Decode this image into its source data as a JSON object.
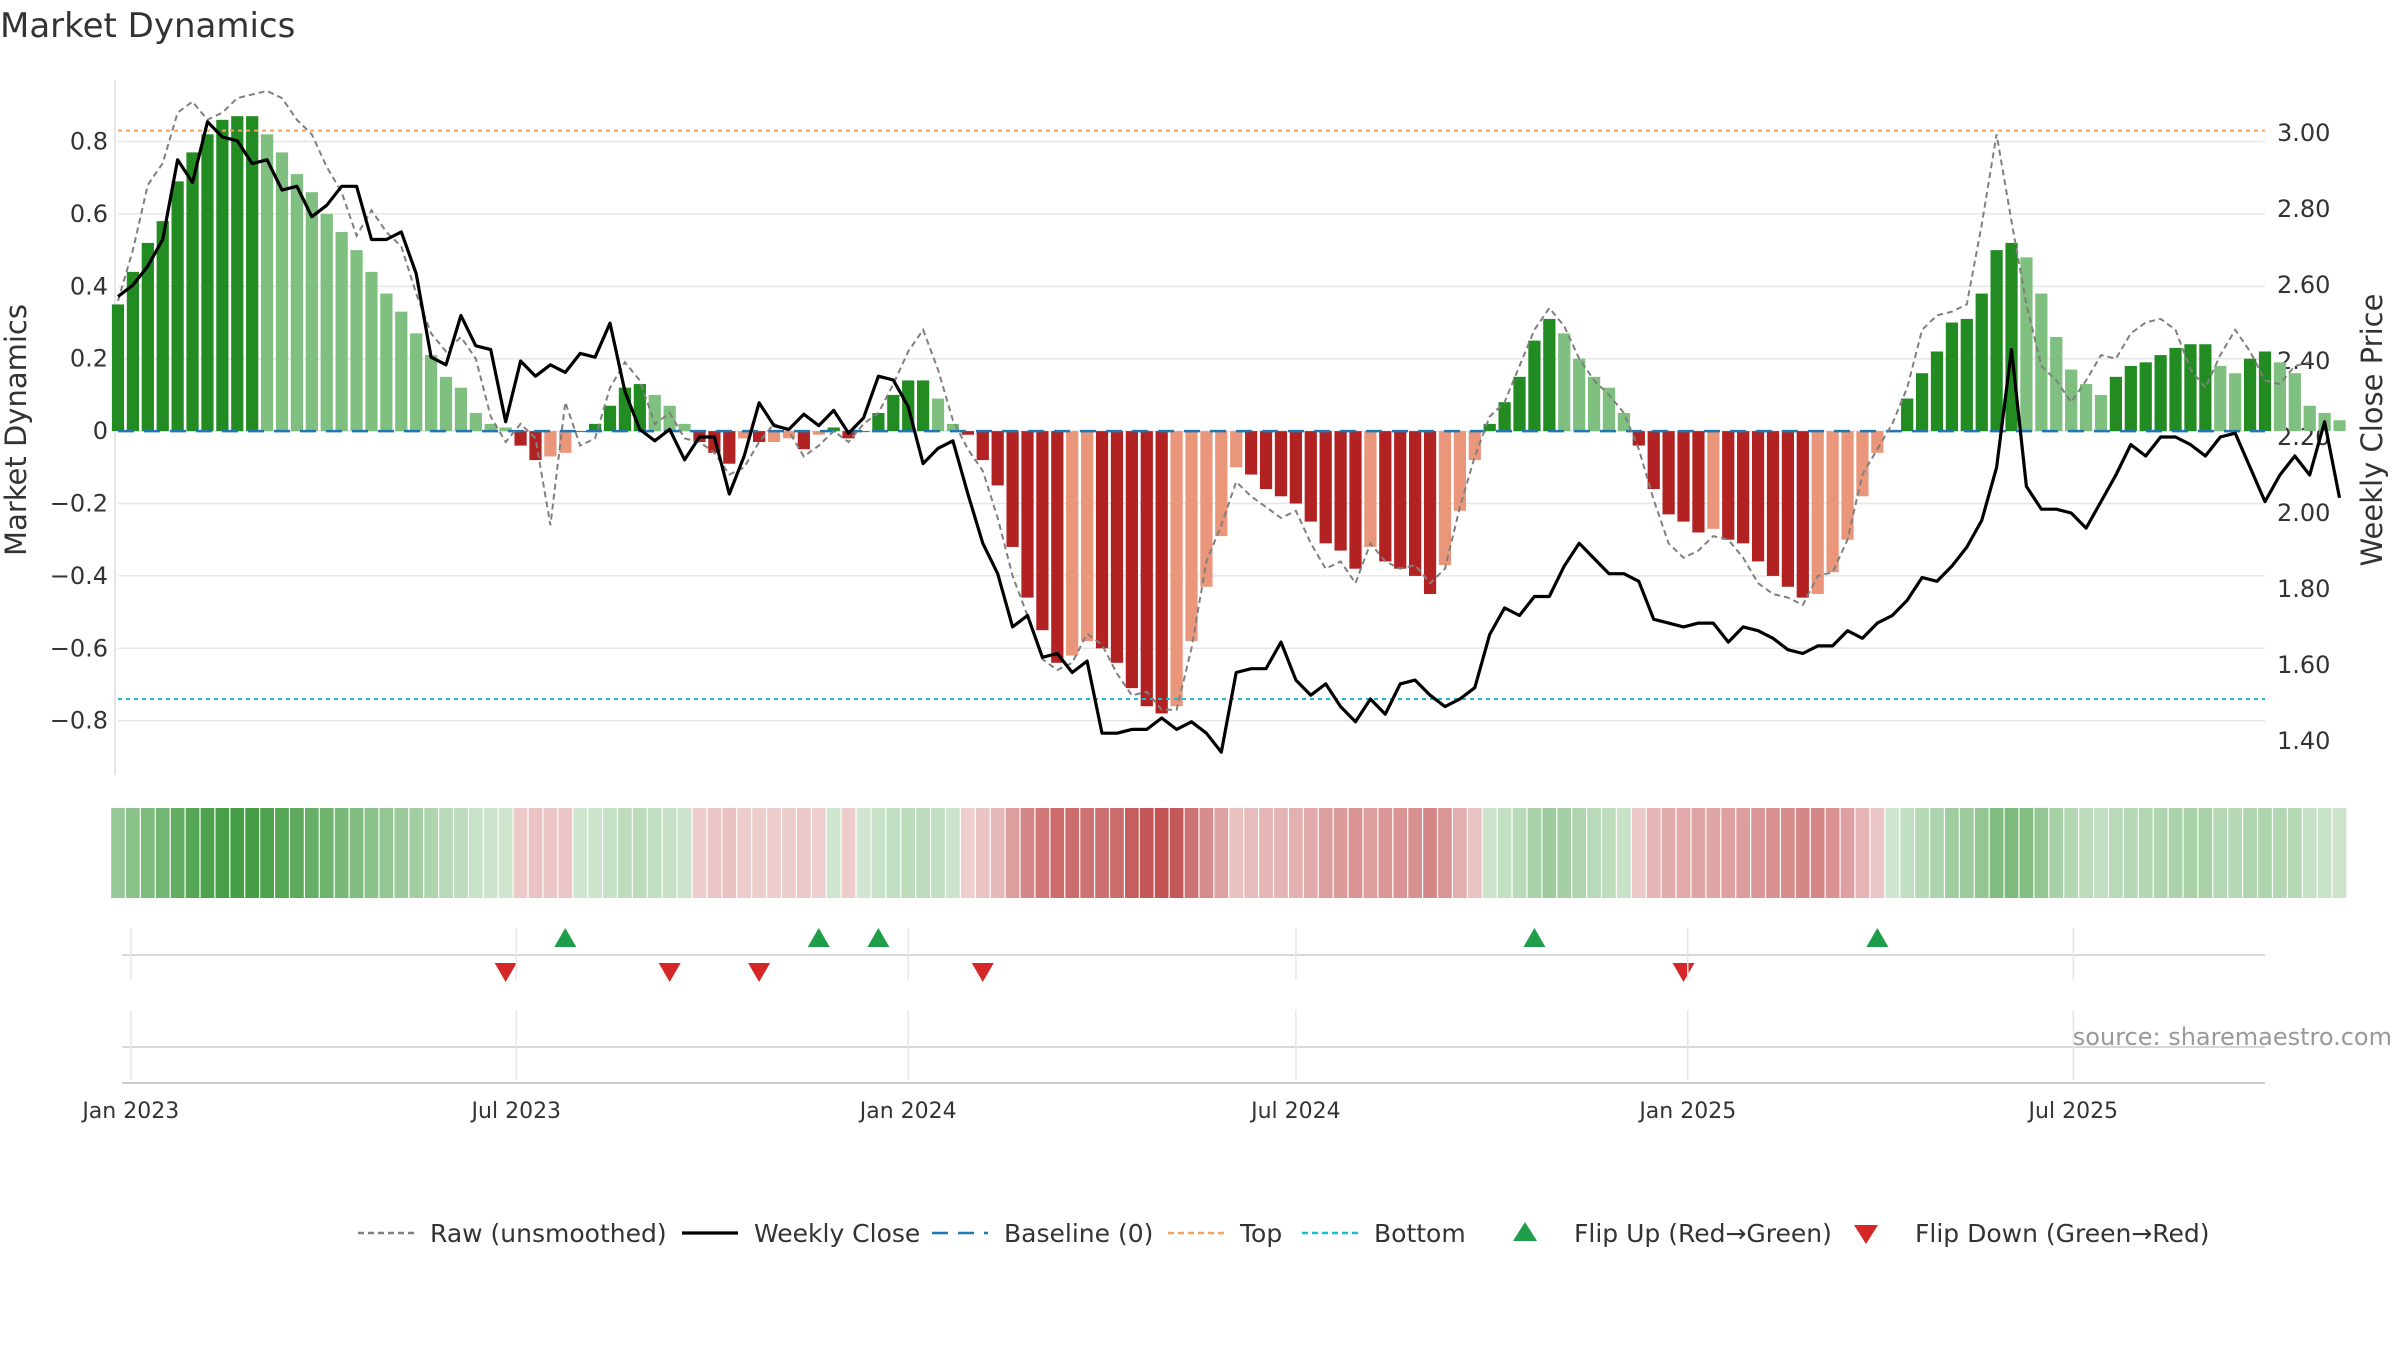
{
  "title": "Market Dynamics",
  "source": "source: sharemaestro.com",
  "colors": {
    "green_strong": "#228b22",
    "green_weak": "#7fbf7f",
    "red_strong": "#b22222",
    "red_weak": "#e9967a",
    "price": "#000000",
    "raw": "#808080",
    "baseline": "#1f77b4",
    "top": "#f4a460",
    "bottom": "#17becf",
    "flip_up": "#1e9e4a",
    "flip_down": "#d62728"
  },
  "chart_data": {
    "type": "bar",
    "title": "Market Dynamics",
    "xlabel": "",
    "ylabel": "Market Dynamics",
    "ylabel_right": "Weekly Close Price",
    "ylim": [
      -0.95,
      0.97
    ],
    "ylim_right": [
      1.31,
      3.14
    ],
    "yticks": [
      {
        "v": 0.8,
        "label": "0.8"
      },
      {
        "v": 0.6,
        "label": "0.6"
      },
      {
        "v": 0.4,
        "label": "0.4"
      },
      {
        "v": 0.2,
        "label": "0.2"
      },
      {
        "v": 0,
        "label": "0"
      },
      {
        "v": -0.2,
        "label": "−0.2"
      },
      {
        "v": -0.4,
        "label": "−0.4"
      },
      {
        "v": -0.6,
        "label": "−0.6"
      },
      {
        "v": -0.8,
        "label": "−0.8"
      }
    ],
    "yticks_right": [
      "3.00",
      "2.80",
      "2.60",
      "2.40",
      "2.20",
      "2.00",
      "1.80",
      "1.60",
      "1.40"
    ],
    "x_start": "2022-12-26",
    "x_end": "2025-09-29",
    "xticks": [
      {
        "date": "2023-01-01",
        "label": "Jan 2023"
      },
      {
        "date": "2023-07-01",
        "label": "Jul 2023"
      },
      {
        "date": "2024-01-01",
        "label": "Jan 2024"
      },
      {
        "date": "2024-07-01",
        "label": "Jul 2024"
      },
      {
        "date": "2025-01-01",
        "label": "Jan 2025"
      },
      {
        "date": "2025-07-01",
        "label": "Jul 2025"
      }
    ],
    "bar_start": "2022-12-26",
    "bar_step_days": 7,
    "dynamics": [
      0.35,
      0.44,
      0.52,
      0.58,
      0.69,
      0.77,
      0.82,
      0.86,
      0.87,
      0.87,
      0.82,
      0.77,
      0.71,
      0.66,
      0.6,
      0.55,
      0.5,
      0.44,
      0.38,
      0.33,
      0.27,
      0.21,
      0.15,
      0.12,
      0.05,
      0.02,
      0.01,
      -0.04,
      -0.08,
      -0.07,
      -0.06,
      0.0,
      0.02,
      0.07,
      0.12,
      0.13,
      0.1,
      0.07,
      0.02,
      -0.03,
      -0.06,
      -0.09,
      -0.02,
      -0.03,
      -0.03,
      -0.02,
      -0.05,
      -0.01,
      0.01,
      -0.02,
      0.0,
      0.05,
      0.1,
      0.14,
      0.14,
      0.09,
      0.02,
      -0.01,
      -0.08,
      -0.15,
      -0.32,
      -0.46,
      -0.55,
      -0.64,
      -0.62,
      -0.58,
      -0.6,
      -0.64,
      -0.71,
      -0.76,
      -0.78,
      -0.76,
      -0.58,
      -0.43,
      -0.29,
      -0.1,
      -0.12,
      -0.16,
      -0.18,
      -0.2,
      -0.25,
      -0.31,
      -0.33,
      -0.38,
      -0.32,
      -0.36,
      -0.38,
      -0.4,
      -0.45,
      -0.37,
      -0.22,
      -0.08,
      0.02,
      0.08,
      0.15,
      0.25,
      0.31,
      0.27,
      0.2,
      0.15,
      0.12,
      0.05,
      -0.04,
      -0.16,
      -0.23,
      -0.25,
      -0.28,
      -0.27,
      -0.3,
      -0.31,
      -0.36,
      -0.4,
      -0.43,
      -0.46,
      -0.45,
      -0.39,
      -0.3,
      -0.18,
      -0.06,
      0.0,
      0.09,
      0.16,
      0.22,
      0.3,
      0.31,
      0.38,
      0.5,
      0.52,
      0.48,
      0.38,
      0.26,
      0.17,
      0.13,
      0.1,
      0.15,
      0.18,
      0.19,
      0.21,
      0.23,
      0.24,
      0.24,
      0.18,
      0.16,
      0.2,
      0.22,
      0.19,
      0.16,
      0.07,
      0.05,
      0.03
    ],
    "raw": [
      0.36,
      0.5,
      0.68,
      0.74,
      0.88,
      0.91,
      0.86,
      0.88,
      0.92,
      0.93,
      0.94,
      0.92,
      0.86,
      0.82,
      0.73,
      0.66,
      0.54,
      0.61,
      0.55,
      0.51,
      0.38,
      0.27,
      0.22,
      0.26,
      0.2,
      0.04,
      -0.03,
      0.02,
      -0.02,
      -0.26,
      0.08,
      -0.04,
      -0.02,
      0.12,
      0.19,
      0.14,
      0.02,
      0.05,
      -0.02,
      -0.03,
      -0.06,
      -0.12,
      -0.1,
      -0.03,
      0.02,
      0.0,
      -0.07,
      -0.04,
      0.0,
      -0.03,
      0.02,
      0.05,
      0.13,
      0.22,
      0.28,
      0.17,
      0.03,
      -0.05,
      -0.11,
      -0.24,
      -0.4,
      -0.51,
      -0.63,
      -0.66,
      -0.64,
      -0.56,
      -0.59,
      -0.67,
      -0.73,
      -0.72,
      -0.77,
      -0.77,
      -0.6,
      -0.36,
      -0.26,
      -0.14,
      -0.18,
      -0.21,
      -0.24,
      -0.22,
      -0.31,
      -0.38,
      -0.36,
      -0.42,
      -0.31,
      -0.36,
      -0.38,
      -0.37,
      -0.42,
      -0.38,
      -0.21,
      -0.07,
      0.04,
      0.08,
      0.18,
      0.28,
      0.34,
      0.29,
      0.2,
      0.14,
      0.1,
      0.05,
      -0.05,
      -0.19,
      -0.31,
      -0.35,
      -0.33,
      -0.29,
      -0.3,
      -0.35,
      -0.42,
      -0.45,
      -0.46,
      -0.48,
      -0.4,
      -0.39,
      -0.3,
      -0.12,
      -0.05,
      0.02,
      0.12,
      0.28,
      0.32,
      0.33,
      0.35,
      0.57,
      0.82,
      0.58,
      0.35,
      0.18,
      0.14,
      0.08,
      0.14,
      0.21,
      0.2,
      0.27,
      0.3,
      0.31,
      0.28,
      0.17,
      0.12,
      0.21,
      0.28,
      0.22,
      0.14,
      0.13,
      0.18,
      0.19
    ],
    "close": [
      2.57,
      2.6,
      2.65,
      2.72,
      2.93,
      2.87,
      3.03,
      2.99,
      2.98,
      2.92,
      2.93,
      2.85,
      2.86,
      2.78,
      2.81,
      2.86,
      2.86,
      2.72,
      2.72,
      2.74,
      2.63,
      2.41,
      2.39,
      2.52,
      2.44,
      2.43,
      2.24,
      2.4,
      2.36,
      2.39,
      2.37,
      2.42,
      2.41,
      2.5,
      2.32,
      2.22,
      2.19,
      2.22,
      2.14,
      2.2,
      2.2,
      2.05,
      2.15,
      2.29,
      2.23,
      2.22,
      2.26,
      2.23,
      2.27,
      2.21,
      2.25,
      2.36,
      2.35,
      2.28,
      2.13,
      2.17,
      2.19,
      2.05,
      1.92,
      1.84,
      1.7,
      1.73,
      1.62,
      1.63,
      1.58,
      1.61,
      1.42,
      1.42,
      1.43,
      1.43,
      1.46,
      1.43,
      1.45,
      1.42,
      1.37,
      1.58,
      1.59,
      1.59,
      1.66,
      1.56,
      1.52,
      1.55,
      1.49,
      1.45,
      1.51,
      1.47,
      1.55,
      1.56,
      1.52,
      1.49,
      1.51,
      1.54,
      1.68,
      1.75,
      1.73,
      1.78,
      1.78,
      1.86,
      1.92,
      1.88,
      1.84,
      1.84,
      1.82,
      1.72,
      1.71,
      1.7,
      1.71,
      1.71,
      1.66,
      1.7,
      1.69,
      1.67,
      1.64,
      1.63,
      1.65,
      1.65,
      1.69,
      1.67,
      1.71,
      1.73,
      1.77,
      1.83,
      1.82,
      1.86,
      1.91,
      1.98,
      2.12,
      2.43,
      2.07,
      2.01,
      2.01,
      2.0,
      1.96,
      2.03,
      2.1,
      2.18,
      2.15,
      2.2,
      2.2,
      2.18,
      2.15,
      2.2,
      2.21,
      2.12,
      2.03,
      2.1,
      2.15,
      2.1,
      2.24,
      2.04
    ],
    "top_level": 0.83,
    "bottom_level": -0.74,
    "baseline_level": 0,
    "flip_up_weeks": [
      30,
      47,
      51,
      95,
      118
    ],
    "flip_down_weeks": [
      26,
      37,
      43,
      58,
      105
    ],
    "legend_position": "bottom-center",
    "grid": "horizontal",
    "legend": [
      {
        "label": "Raw (unsmoothed)",
        "kind": "dotted",
        "color": "#808080"
      },
      {
        "label": "Weekly Close",
        "kind": "solid",
        "color": "#000000"
      },
      {
        "label": "Baseline (0)",
        "kind": "dashed",
        "color": "#1f77b4"
      },
      {
        "label": "Top",
        "kind": "dotted",
        "color": "#f4a460"
      },
      {
        "label": "Bottom",
        "kind": "dotted",
        "color": "#17becf"
      },
      {
        "label": "Flip Up (Red→Green)",
        "kind": "up",
        "color": "#1e9e4a"
      },
      {
        "label": "Flip Down (Green→Red)",
        "kind": "down",
        "color": "#d62728"
      }
    ]
  }
}
